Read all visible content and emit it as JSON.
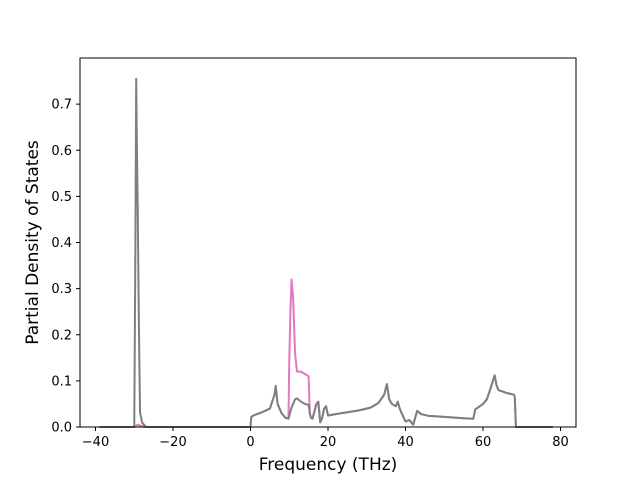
{
  "chart_data": {
    "type": "line",
    "title": "",
    "xlabel": "Frequency (THz)",
    "ylabel": "Partial Density of States",
    "xlim": [
      -44,
      84
    ],
    "ylim": [
      0,
      0.8
    ],
    "xticks": [
      -40,
      -20,
      0,
      20,
      40,
      60,
      80
    ],
    "xtick_labels": [
      "−40",
      "−20",
      "0",
      "20",
      "40",
      "60",
      "80"
    ],
    "yticks": [
      0.0,
      0.1,
      0.2,
      0.3,
      0.4,
      0.5,
      0.6,
      0.7
    ],
    "ytick_labels": [
      "0.0",
      "0.1",
      "0.2",
      "0.3",
      "0.4",
      "0.5",
      "0.6",
      "0.7"
    ],
    "grid": false,
    "legend": "none",
    "series": [
      {
        "color": "#e377c2",
        "x": [
          -39,
          -30,
          -29.5,
          -29,
          -28.5,
          -28,
          -27.5,
          -27,
          -26,
          0,
          0.2,
          1,
          3,
          5,
          6.2,
          6.5,
          7,
          8,
          9,
          9.8,
          10,
          10.3,
          10.6,
          11,
          11.5,
          12,
          13,
          14,
          15,
          15.3,
          15.6,
          16,
          17,
          17.5,
          18,
          18.5,
          19,
          19.5,
          20,
          22,
          25,
          28,
          31,
          33,
          34.5,
          35.2,
          35.8,
          36.5,
          37.5,
          38,
          38.5,
          39,
          40,
          41,
          42,
          42.5,
          43,
          44,
          46,
          50,
          55,
          57.5,
          58,
          60,
          61,
          62,
          63,
          63.5,
          64,
          66,
          68,
          68.2,
          68.5,
          78
        ],
        "y": [
          0,
          0,
          0.003,
          0.005,
          0.003,
          0.002,
          0,
          0,
          0,
          0,
          0.022,
          0.026,
          0.032,
          0.04,
          0.07,
          0.089,
          0.05,
          0.03,
          0.02,
          0.018,
          0.14,
          0.25,
          0.32,
          0.28,
          0.16,
          0.12,
          0.12,
          0.115,
          0.11,
          0.03,
          0.02,
          0.018,
          0.05,
          0.055,
          0.01,
          0.02,
          0.04,
          0.045,
          0.025,
          0.028,
          0.032,
          0.036,
          0.042,
          0.052,
          0.07,
          0.093,
          0.06,
          0.05,
          0.045,
          0.055,
          0.04,
          0.03,
          0.012,
          0.015,
          0.005,
          0.02,
          0.035,
          0.028,
          0.024,
          0.022,
          0.019,
          0.018,
          0.038,
          0.05,
          0.06,
          0.085,
          0.112,
          0.09,
          0.08,
          0.074,
          0.07,
          0.065,
          0,
          0
        ]
      },
      {
        "color": "#7f7f7f",
        "x": [
          -39,
          -30,
          -29.7,
          -29.5,
          -29.3,
          -29.1,
          -28.9,
          -28.7,
          -28.5,
          -28.2,
          -28,
          -27.5,
          -27,
          -26,
          0,
          0.2,
          1,
          3,
          5,
          6.2,
          6.5,
          7,
          8,
          9,
          9.8,
          10.2,
          10.5,
          11,
          11.5,
          12,
          13,
          14,
          15,
          15.3,
          15.6,
          16,
          17,
          17.5,
          18,
          18.5,
          19,
          19.5,
          20,
          22,
          25,
          28,
          31,
          33,
          34.5,
          35.2,
          35.8,
          36.5,
          37.5,
          38,
          38.5,
          39,
          40,
          41,
          42,
          42.5,
          43,
          44,
          46,
          50,
          55,
          57.5,
          58,
          60,
          61,
          62,
          63,
          63.5,
          64,
          66,
          68,
          68.2,
          68.5,
          78
        ],
        "y": [
          0,
          0,
          0.4,
          0.755,
          0.6,
          0.47,
          0.3,
          0.15,
          0.03,
          0.02,
          0.01,
          0.005,
          0,
          0,
          0,
          0.022,
          0.026,
          0.032,
          0.04,
          0.07,
          0.089,
          0.05,
          0.03,
          0.02,
          0.018,
          0.03,
          0.04,
          0.05,
          0.06,
          0.062,
          0.055,
          0.05,
          0.048,
          0.03,
          0.02,
          0.018,
          0.05,
          0.055,
          0.01,
          0.02,
          0.04,
          0.045,
          0.025,
          0.028,
          0.032,
          0.036,
          0.042,
          0.052,
          0.07,
          0.093,
          0.06,
          0.05,
          0.045,
          0.055,
          0.04,
          0.03,
          0.012,
          0.015,
          0.005,
          0.02,
          0.035,
          0.028,
          0.024,
          0.022,
          0.019,
          0.018,
          0.038,
          0.05,
          0.06,
          0.085,
          0.112,
          0.09,
          0.08,
          0.074,
          0.07,
          0.065,
          0,
          0
        ]
      }
    ]
  }
}
